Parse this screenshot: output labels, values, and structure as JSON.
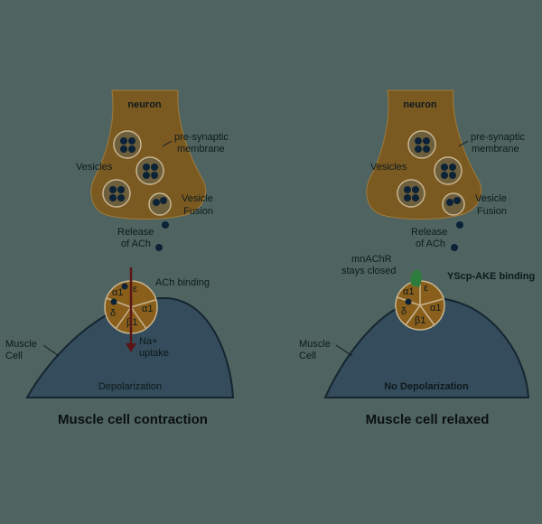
{
  "panels": [
    {
      "neuron": "neuron",
      "presynaptic": [
        "pre-synaptic",
        "membrane"
      ],
      "vesicles": "Vesicles",
      "vesicle_fusion": [
        "Vesicle",
        "Fusion"
      ],
      "release": [
        "Release",
        "of ACh"
      ],
      "binding": "ACh binding",
      "na": [
        "Na+",
        "uptake"
      ],
      "muscle": [
        "Muscle",
        "Cell"
      ],
      "state": "Depolarization",
      "title": "Muscle cell contraction",
      "subunits": [
        "α1",
        "ε",
        "δ",
        "β1",
        "α1"
      ]
    },
    {
      "neuron": "neuron",
      "presynaptic": [
        "pre-synaptic",
        "membrane"
      ],
      "vesicles": "Vesicles",
      "vesicle_fusion": [
        "Vesicle",
        "Fusion"
      ],
      "release": [
        "Release",
        "of ACh"
      ],
      "closed": [
        "mnAChR",
        "stays closed"
      ],
      "binding": "YScp-AKE binding",
      "muscle": [
        "Muscle",
        "Cell"
      ],
      "state": "No Depolarization",
      "title": "Muscle cell relaxed",
      "subunits": [
        "α1",
        "ε",
        "δ",
        "β1",
        "α1"
      ]
    }
  ],
  "colors": {
    "background": "#4f6460",
    "neuron_fill": "#7b5a22",
    "vesicle_fill": "#6e5f3c",
    "dot": "#0c2236",
    "muscle_fill": "#344c5c",
    "receptor": "#8a5f1c",
    "arrow": "#5a1616",
    "toxin": "#2c7d3d"
  }
}
